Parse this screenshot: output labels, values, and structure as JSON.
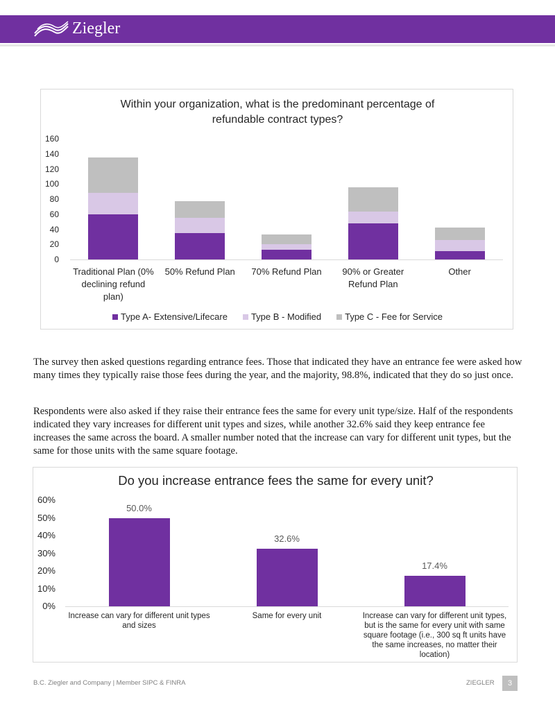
{
  "header": {
    "logo": "Ziegler"
  },
  "chart_data": [
    {
      "type": "bar",
      "stacked": true,
      "title": "Within your organization, what is the predominant percentage of refundable contract types?",
      "categories": [
        "Traditional Plan (0% declining refund plan)",
        "50% Refund Plan",
        "70% Refund Plan",
        "90% or Greater Refund Plan",
        "Other"
      ],
      "series": [
        {
          "name": "Type A- Extensive/Lifecare",
          "color": "#7030a0",
          "values": [
            60,
            35,
            13,
            48,
            11
          ]
        },
        {
          "name": "Type B - Modified",
          "color": "#d9c8e6",
          "values": [
            28,
            20,
            7,
            15,
            15
          ]
        },
        {
          "name": "Type C - Fee for Service",
          "color": "#bfbfbf",
          "values": [
            47,
            22,
            13,
            33,
            16
          ]
        }
      ],
      "ylim": [
        0,
        160
      ],
      "yticks": [
        0,
        20,
        40,
        60,
        80,
        100,
        120,
        140,
        160
      ],
      "grid": false,
      "legend": "bottom"
    },
    {
      "type": "bar",
      "title": "Do you increase entrance fees the same for every unit?",
      "categories": [
        "Increase can vary for different unit types and sizes",
        "Same for every unit",
        "Increase can vary for different unit types, but is the same for every unit with same square footage (i.e., 300 sq ft units have the same increases, no matter their location)"
      ],
      "values": [
        50,
        32.6,
        17.4
      ],
      "value_labels": [
        "50.0%",
        "32.6%",
        "17.4%"
      ],
      "color": "#7030a0",
      "ylim": [
        0,
        60
      ],
      "yticks": [
        {
          "value": 0,
          "label": "0%"
        },
        {
          "value": 10,
          "label": "10%"
        },
        {
          "value": 20,
          "label": "20%"
        },
        {
          "value": 30,
          "label": "30%"
        },
        {
          "value": 40,
          "label": "40%"
        },
        {
          "value": 50,
          "label": "50%"
        },
        {
          "value": 60,
          "label": "60%"
        }
      ],
      "grid": false
    }
  ],
  "paragraphs": [
    "The survey then asked questions regarding entrance fees. Those that indicated they have an entrance fee were asked how many times they typically raise those fees during the year, and the majority, 98.8%, indicated that they do so just once.",
    "Respondents were also asked if they raise their entrance fees the same for every unit type/size. Half of the respondents indicated they vary increases for different unit types and sizes, while another 32.6% said they keep entrance fee increases the same across the board. A smaller number noted that the increase can vary for different unit types, but the same for those units with the same square footage."
  ],
  "footer": {
    "left": "B.C. Ziegler and Company | Member SIPC & FINRA",
    "right": "ZIEGLER",
    "page": "3"
  }
}
